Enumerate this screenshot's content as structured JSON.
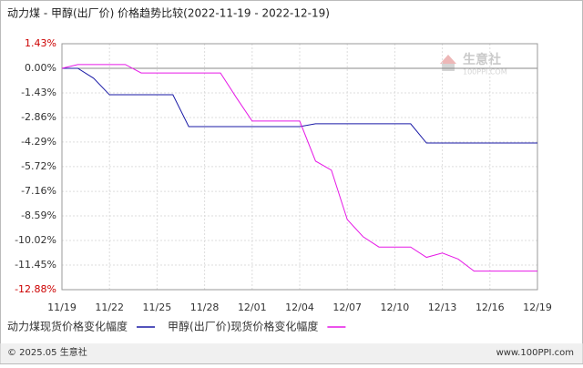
{
  "chart_data": {
    "type": "line",
    "title": "动力煤 - 甲醇(出厂价) 价格趋势比较(2022-11-19 - 2022-12-19)",
    "categories": [
      "11/19",
      null,
      null,
      "11/22",
      null,
      null,
      "11/25",
      null,
      null,
      "11/28",
      null,
      null,
      "12/01",
      null,
      null,
      "12/04",
      null,
      null,
      "12/07",
      null,
      null,
      "12/10",
      null,
      null,
      "12/13",
      null,
      null,
      "12/16",
      null,
      null,
      "12/19"
    ],
    "series": [
      {
        "name": "动力煤现货价格变化幅度",
        "color": "#1a1aa6",
        "values": [
          0,
          0,
          -0.58,
          -1.54,
          -1.54,
          -1.54,
          -1.54,
          -1.54,
          -3.39,
          -3.39,
          -3.39,
          -3.39,
          -3.39,
          -3.39,
          -3.39,
          -3.39,
          -3.23,
          -3.23,
          -3.23,
          -3.23,
          -3.23,
          -3.23,
          -3.23,
          -4.35,
          -4.35,
          -4.35,
          -4.35,
          -4.35,
          -4.35,
          -4.35,
          -4.35
        ]
      },
      {
        "name": "甲醇(出厂价)现货价格变化幅度",
        "color": "#e619e6",
        "values": [
          0,
          0.22,
          0.22,
          0.22,
          0.22,
          -0.27,
          -0.27,
          -0.27,
          -0.27,
          -0.27,
          -0.27,
          -1.7,
          -3.07,
          -3.07,
          -3.07,
          -3.07,
          -5.4,
          -5.93,
          -8.8,
          -9.8,
          -10.4,
          -10.4,
          -10.4,
          -11.0,
          -10.75,
          -11.1,
          -11.8,
          -11.8,
          -11.8,
          -11.8,
          -11.8
        ]
      }
    ],
    "ylim": [
      -12.88,
      1.43
    ],
    "yticks": [
      {
        "value": 1.43,
        "label": "1.43%"
      },
      {
        "value": 0,
        "label": "0.00%"
      },
      {
        "value": -1.43,
        "label": "-1.43%"
      },
      {
        "value": -2.86,
        "label": "-2.86%"
      },
      {
        "value": -4.29,
        "label": "-4.29%"
      },
      {
        "value": -5.72,
        "label": "-5.72%"
      },
      {
        "value": -7.16,
        "label": "-7.16%"
      },
      {
        "value": -8.59,
        "label": "-8.59%"
      },
      {
        "value": -10.02,
        "label": "-10.02%"
      },
      {
        "value": -11.45,
        "label": "-11.45%"
      },
      {
        "value": -12.88,
        "label": "-12.88%"
      }
    ],
    "grid": true
  },
  "watermark": {
    "brand": "生意社",
    "site": "100PPI.COM"
  },
  "footer": {
    "copyright": "© 2025.05 生意社",
    "website": "www.100PPI.com"
  }
}
